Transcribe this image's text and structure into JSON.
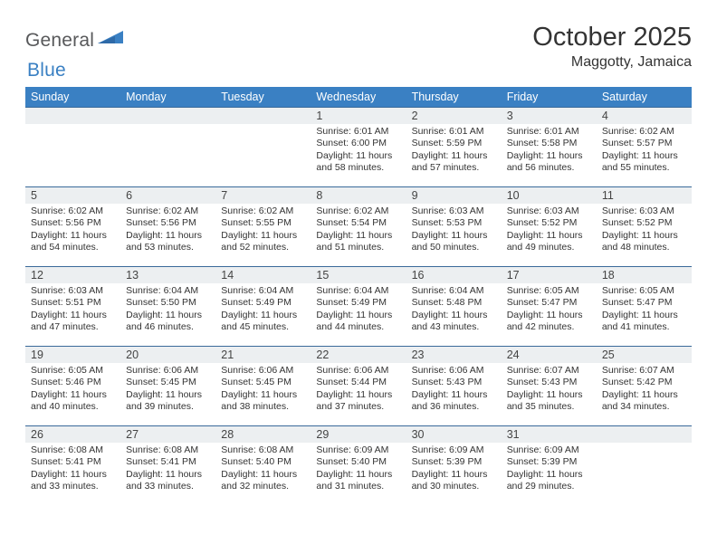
{
  "logo": {
    "text1": "General",
    "text2": "Blue"
  },
  "title": "October 2025",
  "location": "Maggotty, Jamaica",
  "colors": {
    "header_bg": "#3a80c3",
    "header_text": "#ffffff",
    "daynum_bg": "#eceff1",
    "row_border": "#3a6a9a",
    "body_text": "#333333",
    "page_bg": "#ffffff",
    "logo_gray": "#58595b",
    "logo_blue": "#3a80c3"
  },
  "typography": {
    "title_fontsize": 29,
    "location_fontsize": 16,
    "weekday_fontsize": 12.5,
    "daynum_fontsize": 12.5,
    "body_fontsize": 10.5,
    "font_family": "Arial"
  },
  "weekdays": [
    "Sunday",
    "Monday",
    "Tuesday",
    "Wednesday",
    "Thursday",
    "Friday",
    "Saturday"
  ],
  "weeks": [
    [
      {
        "n": "",
        "sr": "",
        "ss": "",
        "dl": ""
      },
      {
        "n": "",
        "sr": "",
        "ss": "",
        "dl": ""
      },
      {
        "n": "",
        "sr": "",
        "ss": "",
        "dl": ""
      },
      {
        "n": "1",
        "sr": "6:01 AM",
        "ss": "6:00 PM",
        "dl": "11 hours and 58 minutes."
      },
      {
        "n": "2",
        "sr": "6:01 AM",
        "ss": "5:59 PM",
        "dl": "11 hours and 57 minutes."
      },
      {
        "n": "3",
        "sr": "6:01 AM",
        "ss": "5:58 PM",
        "dl": "11 hours and 56 minutes."
      },
      {
        "n": "4",
        "sr": "6:02 AM",
        "ss": "5:57 PM",
        "dl": "11 hours and 55 minutes."
      }
    ],
    [
      {
        "n": "5",
        "sr": "6:02 AM",
        "ss": "5:56 PM",
        "dl": "11 hours and 54 minutes."
      },
      {
        "n": "6",
        "sr": "6:02 AM",
        "ss": "5:56 PM",
        "dl": "11 hours and 53 minutes."
      },
      {
        "n": "7",
        "sr": "6:02 AM",
        "ss": "5:55 PM",
        "dl": "11 hours and 52 minutes."
      },
      {
        "n": "8",
        "sr": "6:02 AM",
        "ss": "5:54 PM",
        "dl": "11 hours and 51 minutes."
      },
      {
        "n": "9",
        "sr": "6:03 AM",
        "ss": "5:53 PM",
        "dl": "11 hours and 50 minutes."
      },
      {
        "n": "10",
        "sr": "6:03 AM",
        "ss": "5:52 PM",
        "dl": "11 hours and 49 minutes."
      },
      {
        "n": "11",
        "sr": "6:03 AM",
        "ss": "5:52 PM",
        "dl": "11 hours and 48 minutes."
      }
    ],
    [
      {
        "n": "12",
        "sr": "6:03 AM",
        "ss": "5:51 PM",
        "dl": "11 hours and 47 minutes."
      },
      {
        "n": "13",
        "sr": "6:04 AM",
        "ss": "5:50 PM",
        "dl": "11 hours and 46 minutes."
      },
      {
        "n": "14",
        "sr": "6:04 AM",
        "ss": "5:49 PM",
        "dl": "11 hours and 45 minutes."
      },
      {
        "n": "15",
        "sr": "6:04 AM",
        "ss": "5:49 PM",
        "dl": "11 hours and 44 minutes."
      },
      {
        "n": "16",
        "sr": "6:04 AM",
        "ss": "5:48 PM",
        "dl": "11 hours and 43 minutes."
      },
      {
        "n": "17",
        "sr": "6:05 AM",
        "ss": "5:47 PM",
        "dl": "11 hours and 42 minutes."
      },
      {
        "n": "18",
        "sr": "6:05 AM",
        "ss": "5:47 PM",
        "dl": "11 hours and 41 minutes."
      }
    ],
    [
      {
        "n": "19",
        "sr": "6:05 AM",
        "ss": "5:46 PM",
        "dl": "11 hours and 40 minutes."
      },
      {
        "n": "20",
        "sr": "6:06 AM",
        "ss": "5:45 PM",
        "dl": "11 hours and 39 minutes."
      },
      {
        "n": "21",
        "sr": "6:06 AM",
        "ss": "5:45 PM",
        "dl": "11 hours and 38 minutes."
      },
      {
        "n": "22",
        "sr": "6:06 AM",
        "ss": "5:44 PM",
        "dl": "11 hours and 37 minutes."
      },
      {
        "n": "23",
        "sr": "6:06 AM",
        "ss": "5:43 PM",
        "dl": "11 hours and 36 minutes."
      },
      {
        "n": "24",
        "sr": "6:07 AM",
        "ss": "5:43 PM",
        "dl": "11 hours and 35 minutes."
      },
      {
        "n": "25",
        "sr": "6:07 AM",
        "ss": "5:42 PM",
        "dl": "11 hours and 34 minutes."
      }
    ],
    [
      {
        "n": "26",
        "sr": "6:08 AM",
        "ss": "5:41 PM",
        "dl": "11 hours and 33 minutes."
      },
      {
        "n": "27",
        "sr": "6:08 AM",
        "ss": "5:41 PM",
        "dl": "11 hours and 33 minutes."
      },
      {
        "n": "28",
        "sr": "6:08 AM",
        "ss": "5:40 PM",
        "dl": "11 hours and 32 minutes."
      },
      {
        "n": "29",
        "sr": "6:09 AM",
        "ss": "5:40 PM",
        "dl": "11 hours and 31 minutes."
      },
      {
        "n": "30",
        "sr": "6:09 AM",
        "ss": "5:39 PM",
        "dl": "11 hours and 30 minutes."
      },
      {
        "n": "31",
        "sr": "6:09 AM",
        "ss": "5:39 PM",
        "dl": "11 hours and 29 minutes."
      },
      {
        "n": "",
        "sr": "",
        "ss": "",
        "dl": ""
      }
    ]
  ],
  "labels": {
    "sunrise": "Sunrise:",
    "sunset": "Sunset:",
    "daylight": "Daylight:"
  }
}
